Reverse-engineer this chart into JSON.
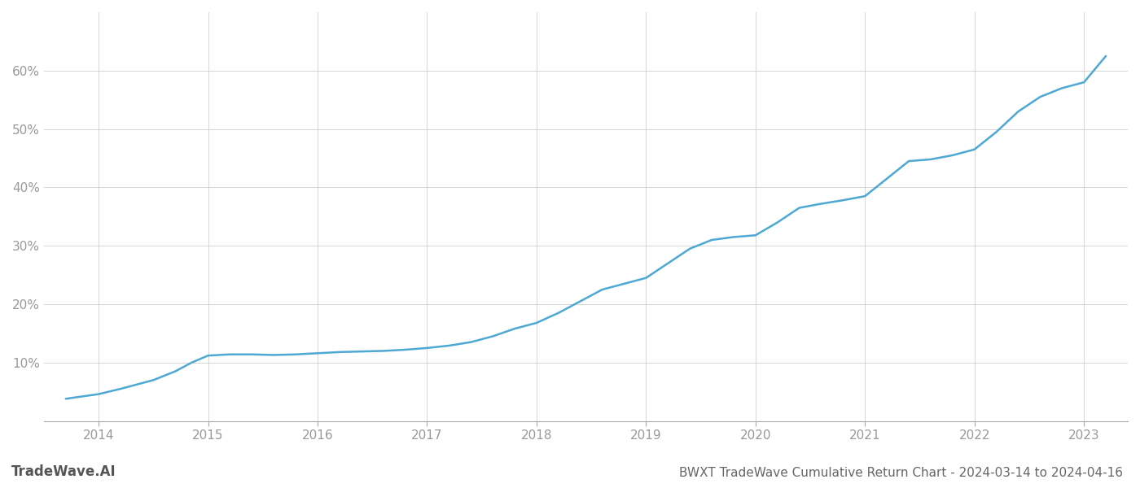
{
  "title": "BWXT TradeWave Cumulative Return Chart - 2024-03-14 to 2024-04-16",
  "watermark_left": "TradeWave.AI",
  "x_years": [
    2014,
    2015,
    2016,
    2017,
    2018,
    2019,
    2020,
    2021,
    2022,
    2023
  ],
  "x_values": [
    2013.7,
    2013.85,
    2014.0,
    2014.2,
    2014.5,
    2014.7,
    2014.85,
    2015.0,
    2015.1,
    2015.2,
    2015.4,
    2015.6,
    2015.8,
    2016.0,
    2016.2,
    2016.4,
    2016.6,
    2016.8,
    2017.0,
    2017.2,
    2017.4,
    2017.6,
    2017.8,
    2018.0,
    2018.2,
    2018.4,
    2018.6,
    2018.8,
    2019.0,
    2019.2,
    2019.4,
    2019.6,
    2019.8,
    2020.0,
    2020.2,
    2020.4,
    2020.6,
    2020.8,
    2021.0,
    2021.2,
    2021.4,
    2021.6,
    2021.8,
    2022.0,
    2022.2,
    2022.4,
    2022.6,
    2022.8,
    2023.0,
    2023.2
  ],
  "y_values": [
    3.8,
    4.2,
    4.6,
    5.5,
    7.0,
    8.5,
    10.0,
    11.2,
    11.3,
    11.4,
    11.4,
    11.3,
    11.4,
    11.6,
    11.8,
    11.9,
    12.0,
    12.2,
    12.5,
    12.9,
    13.5,
    14.5,
    15.8,
    16.8,
    18.5,
    20.5,
    22.5,
    23.5,
    24.5,
    27.0,
    29.5,
    31.0,
    31.5,
    31.8,
    34.0,
    36.5,
    37.2,
    37.8,
    38.5,
    41.5,
    44.5,
    44.8,
    45.5,
    46.5,
    49.5,
    53.0,
    55.5,
    57.0,
    58.0,
    62.5
  ],
  "xlim": [
    2013.5,
    2023.4
  ],
  "ylim": [
    0,
    70
  ],
  "yticks": [
    10,
    20,
    30,
    40,
    50,
    60
  ],
  "ytick_labels": [
    "10%",
    "20%",
    "30%",
    "40%",
    "50%",
    "60%"
  ],
  "line_color": "#4da8d4",
  "line_width": 1.8,
  "background_color": "#ffffff",
  "grid_color": "#cccccc",
  "grid_alpha": 0.8,
  "axis_color": "#aaaaaa",
  "tick_color": "#999999",
  "title_color": "#666666",
  "title_fontsize": 11,
  "watermark_color": "#555555",
  "watermark_fontsize": 12
}
